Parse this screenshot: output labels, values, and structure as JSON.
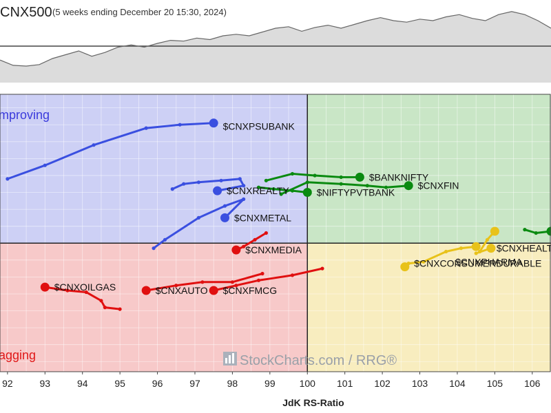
{
  "header": {
    "title": "CNX500",
    "subtitle": "(5 weeks ending December 20 15:30, 2024)"
  },
  "colors": {
    "improving_bg": "#cdd0f5",
    "leading_bg": "#c9e6c6",
    "weakening_bg": "#f8edbf",
    "lagging_bg": "#f7c9c9",
    "blue": "#3a4fe0",
    "green": "#0a8a10",
    "yellow": "#e8c21a",
    "red": "#e01010",
    "improving_text": "#3a3adc",
    "lagging_text": "#e01818"
  },
  "quadrants": {
    "improving": "mproving",
    "lagging": "agging"
  },
  "watermark": "StockCharts.com / RRG®",
  "chart_data": {
    "type": "scatter",
    "xlabel": "JdK RS-Ratio",
    "xlim": [
      91.8,
      106.5
    ],
    "ylim": [
      96.2,
      104.4
    ],
    "center": [
      100,
      100
    ],
    "x_ticks": [
      92,
      93,
      94,
      95,
      96,
      97,
      98,
      99,
      100,
      101,
      102,
      103,
      104,
      105,
      106
    ],
    "index_line": [
      0.72,
      0.79,
      0.8,
      0.78,
      0.7,
      0.65,
      0.6,
      0.67,
      0.62,
      0.55,
      0.52,
      0.55,
      0.5,
      0.46,
      0.47,
      0.43,
      0.45,
      0.4,
      0.38,
      0.4,
      0.35,
      0.3,
      0.28,
      0.34,
      0.29,
      0.26,
      0.3,
      0.25,
      0.2,
      0.16,
      0.2,
      0.22,
      0.18,
      0.2,
      0.15,
      0.12,
      0.17,
      0.2,
      0.12,
      0.08,
      0.12,
      0.2,
      0.3
    ],
    "series": [
      {
        "name": "$CNXPSUBANK",
        "color": "blue",
        "points": [
          [
            92.0,
            101.9
          ],
          [
            93.0,
            102.3
          ],
          [
            94.3,
            102.9
          ],
          [
            95.7,
            103.4
          ],
          [
            96.6,
            103.5
          ],
          [
            97.5,
            103.55
          ]
        ]
      },
      {
        "name": "$CNXREALTY",
        "color": "blue",
        "points": [
          [
            96.4,
            101.6
          ],
          [
            96.7,
            101.75
          ],
          [
            97.1,
            101.8
          ],
          [
            97.7,
            101.85
          ],
          [
            98.2,
            101.9
          ],
          [
            98.3,
            101.7
          ],
          [
            97.6,
            101.55
          ]
        ]
      },
      {
        "name": "$CNXMETAL",
        "color": "blue",
        "points": [
          [
            95.9,
            99.85
          ],
          [
            96.2,
            100.1
          ],
          [
            97.1,
            100.75
          ],
          [
            97.8,
            101.1
          ],
          [
            98.3,
            101.3
          ],
          [
            97.8,
            100.75
          ]
        ]
      },
      {
        "name": "$BANKNIFTY",
        "color": "green",
        "points": [
          [
            98.9,
            101.85
          ],
          [
            99.6,
            102.05
          ],
          [
            100.2,
            102.0
          ],
          [
            100.9,
            101.95
          ],
          [
            101.4,
            101.95
          ]
        ]
      },
      {
        "name": "$CNXFIN",
        "color": "green",
        "points": [
          [
            99.3,
            101.45
          ],
          [
            100.0,
            101.8
          ],
          [
            100.9,
            101.75
          ],
          [
            101.6,
            101.7
          ],
          [
            102.1,
            101.65
          ],
          [
            102.7,
            101.7
          ]
        ]
      },
      {
        "name": "$NIFTYPVTBANK",
        "color": "green",
        "points": [
          [
            98.7,
            101.65
          ],
          [
            99.1,
            101.6
          ],
          [
            99.6,
            101.55
          ],
          [
            100.0,
            101.5
          ]
        ]
      },
      {
        "name": "$CNXHEALTH",
        "color": "green",
        "points": [
          [
            105.8,
            100.4
          ],
          [
            106.1,
            100.3
          ],
          [
            106.5,
            100.35
          ]
        ]
      },
      {
        "name": "$CNXCONSUMERDURABLE",
        "color": "yellow",
        "points": [
          [
            102.7,
            99.4
          ],
          [
            103.1,
            99.45
          ],
          [
            103.7,
            99.75
          ],
          [
            104.1,
            99.85
          ],
          [
            104.5,
            99.9
          ]
        ]
      },
      {
        "name": "$CNXPHARMA",
        "color": "yellow",
        "points": [
          [
            104.6,
            99.75
          ],
          [
            104.8,
            100.1
          ],
          [
            105.0,
            100.35
          ]
        ]
      },
      {
        "name": "$CNXHEALTH",
        "color": "yellow",
        "points": [
          [
            104.5,
            99.7
          ],
          [
            104.9,
            99.85
          ]
        ]
      },
      {
        "name": "$CNXCONSUMER",
        "color": "yellow",
        "points": [
          [
            102.6,
            99.3
          ]
        ]
      },
      {
        "name": "$CNXMEDIA",
        "color": "red",
        "points": [
          [
            98.9,
            100.3
          ],
          [
            98.6,
            100.1
          ],
          [
            98.3,
            99.9
          ],
          [
            98.1,
            99.8
          ]
        ]
      },
      {
        "name": "$CNXOILGAS",
        "color": "red",
        "points": [
          [
            95.0,
            98.05
          ],
          [
            94.6,
            98.1
          ],
          [
            94.5,
            98.3
          ],
          [
            94.1,
            98.55
          ],
          [
            93.6,
            98.6
          ],
          [
            93.0,
            98.7
          ]
        ]
      },
      {
        "name": "$CNXAUTO",
        "color": "red",
        "points": [
          [
            98.8,
            99.1
          ],
          [
            98.0,
            98.85
          ],
          [
            97.2,
            98.85
          ],
          [
            96.5,
            98.75
          ],
          [
            95.7,
            98.6
          ]
        ]
      },
      {
        "name": "$CNXFMCG",
        "color": "red",
        "points": [
          [
            100.4,
            99.25
          ],
          [
            99.6,
            99.05
          ],
          [
            98.7,
            98.9
          ],
          [
            98.1,
            98.75
          ],
          [
            97.5,
            98.6
          ]
        ]
      }
    ],
    "labels": [
      {
        "text": "$CNXPSUBANK",
        "at": [
          97.6,
          103.45
        ]
      },
      {
        "text": "$CNXREALTY",
        "at": [
          97.7,
          101.55
        ]
      },
      {
        "text": "$CNXMETAL",
        "at": [
          97.9,
          100.75
        ]
      },
      {
        "text": "$BANKNIFTY",
        "at": [
          101.5,
          101.95
        ]
      },
      {
        "text": "$CNXFIN",
        "at": [
          102.8,
          101.7
        ]
      },
      {
        "text": "$NIFTYPVTBANK",
        "at": [
          100.1,
          101.5
        ]
      },
      {
        "text": "$CNXMEDIA",
        "at": [
          98.2,
          99.8
        ]
      },
      {
        "text": "$CNXHEALT",
        "at": [
          104.9,
          99.85
        ]
      },
      {
        "text": "$CNXPHARMA",
        "at": [
          103.8,
          99.45
        ]
      },
      {
        "text": "$CNXCONSUMERDURABLE",
        "at": [
          102.7,
          99.4
        ]
      },
      {
        "text": "$CNXOILGAS",
        "at": [
          93.1,
          98.7
        ]
      },
      {
        "text": "$CNXAUTO",
        "at": [
          95.8,
          98.6
        ]
      },
      {
        "text": "$CNXFMCG",
        "at": [
          97.6,
          98.6
        ]
      }
    ]
  }
}
